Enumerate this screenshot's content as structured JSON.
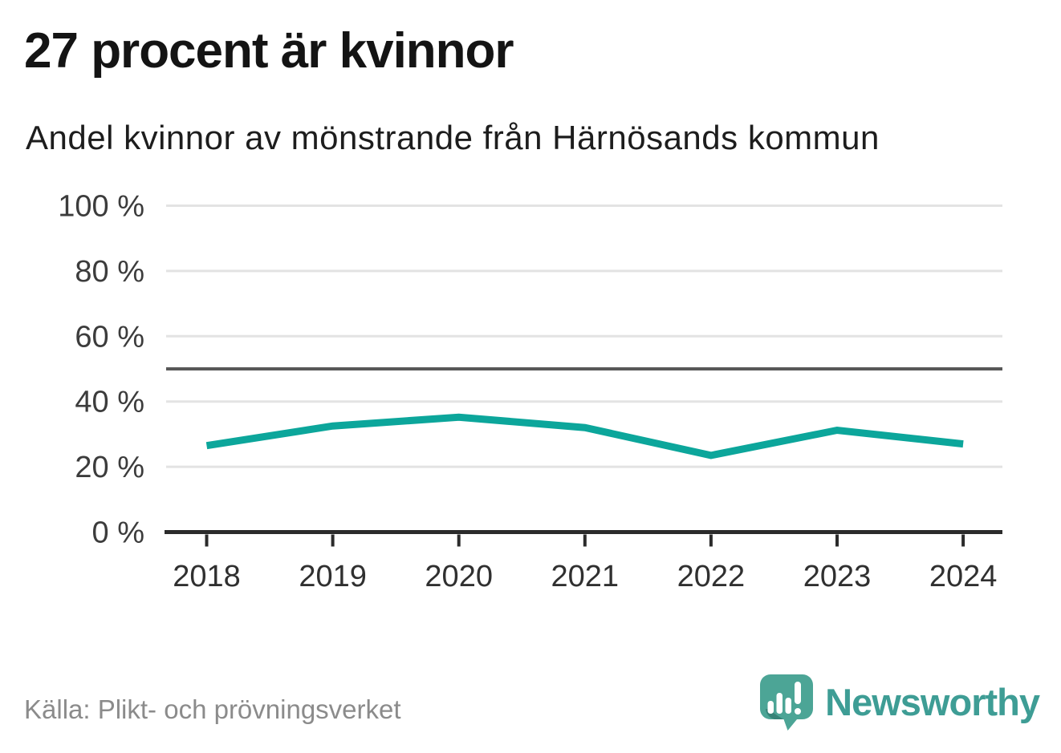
{
  "header": {
    "title": "27 procent är kvinnor",
    "subtitle": "Andel kvinnor av mönstrande från Härnösands kommun"
  },
  "chart_data": {
    "type": "line",
    "title": "27 procent är kvinnor",
    "subtitle": "Andel kvinnor av mönstrande från Härnösands kommun",
    "x": [
      2018,
      2019,
      2020,
      2021,
      2022,
      2023,
      2024
    ],
    "series": [
      {
        "name": "Andel kvinnor av mönstrande",
        "values": [
          26.5,
          32.5,
          35.2,
          32,
          23.5,
          31.2,
          27
        ]
      }
    ],
    "xlabel": "",
    "ylabel": "",
    "ylim": [
      0,
      100
    ],
    "yticks": [
      0,
      20,
      40,
      60,
      80,
      100
    ],
    "ytick_labels": [
      "0 %",
      "20 %",
      "40 %",
      "60 %",
      "80 %",
      "100 %"
    ],
    "reference_line": 50,
    "grid": true,
    "legend_position": "none",
    "line_color": "#0CA69B",
    "gridline_color": "#e3e3e3",
    "reference_line_color": "#585858",
    "axis_color": "#2b2b2b"
  },
  "footer": {
    "source": "Källa: Plikt- och prövningsverket",
    "brand": "Newsworthy",
    "brand_color": "#3E9D95",
    "logo_icon": "speech-bubble-bar-chart-exclamation"
  }
}
